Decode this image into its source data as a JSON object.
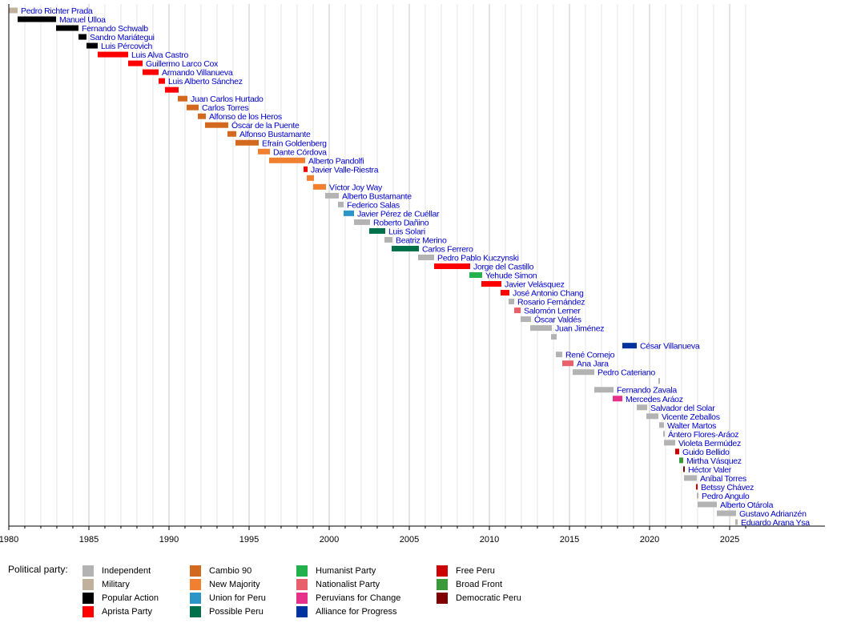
{
  "chart_data": {
    "type": "timeline",
    "xlim": [
      1980,
      2026
    ],
    "x_ticks": [
      1980,
      1985,
      1990,
      1995,
      2000,
      2005,
      2010,
      2015,
      2020,
      2025
    ],
    "grid": "vertical minor gridlines every year",
    "parties": {
      "independent": {
        "label": "Independent",
        "color": "#b3b3b3"
      },
      "military": {
        "label": "Military",
        "color": "#c0b09c"
      },
      "popular_action": {
        "label": "Popular Action",
        "color": "#000000"
      },
      "aprista": {
        "label": "Aprista Party",
        "color": "#ff0000"
      },
      "cambio90": {
        "label": "Cambio 90",
        "color": "#d2691e"
      },
      "new_majority": {
        "label": "New Majority",
        "color": "#f08030"
      },
      "union_peru": {
        "label": "Union for Peru",
        "color": "#2b95c8"
      },
      "possible_peru": {
        "label": "Possible Peru",
        "color": "#00704a"
      },
      "humanist": {
        "label": "Humanist Party",
        "color": "#22b14c"
      },
      "nationalist": {
        "label": "Nationalist Party",
        "color": "#e8606a"
      },
      "peruvians_change": {
        "label": "Peruvians for Change",
        "color": "#e6308a"
      },
      "alliance_progress": {
        "label": "Alliance for Progress",
        "color": "#0033a0"
      },
      "free_peru": {
        "label": "Free Peru",
        "color": "#cc0000"
      },
      "broad_front": {
        "label": "Broad Front",
        "color": "#3a9a3a"
      },
      "democratic_peru": {
        "label": "Democratic Peru",
        "color": "#800000"
      }
    },
    "rows": [
      {
        "name": "Pedro Richter Prada",
        "start": 1980.0,
        "end": 1980.55,
        "party": "military"
      },
      {
        "name": "Manuel Ulloa",
        "start": 1980.55,
        "end": 1982.95,
        "party": "popular_action"
      },
      {
        "name": "Fernando Schwalb",
        "start": 1982.95,
        "end": 1984.35,
        "party": "popular_action"
      },
      {
        "name": "Sandro Mariátegui",
        "start": 1984.35,
        "end": 1984.85,
        "party": "popular_action"
      },
      {
        "name": "Luis Pércovich",
        "start": 1984.85,
        "end": 1985.55,
        "party": "popular_action"
      },
      {
        "name": "Luis Alva Castro",
        "start": 1985.55,
        "end": 1987.45,
        "party": "aprista"
      },
      {
        "name": "Guillermo Larco Cox",
        "start": 1987.45,
        "end": 1988.35,
        "party": "aprista"
      },
      {
        "name": "Armando Villanueva",
        "start": 1988.35,
        "end": 1989.35,
        "party": "aprista"
      },
      {
        "name": "Luis Alberto Sánchez",
        "start": 1989.35,
        "end": 1989.75,
        "party": "aprista"
      },
      {
        "name": "Guillermo Larco Cox",
        "start": 1989.75,
        "end": 1990.6,
        "party": "aprista",
        "label": false
      },
      {
        "name": "Juan Carlos Hurtado",
        "start": 1990.55,
        "end": 1991.15,
        "party": "cambio90"
      },
      {
        "name": "Carlos Torres",
        "start": 1991.1,
        "end": 1991.85,
        "party": "cambio90"
      },
      {
        "name": "Alfonso de los Heros",
        "start": 1991.8,
        "end": 1992.3,
        "party": "cambio90"
      },
      {
        "name": "Óscar de la Puente",
        "start": 1992.25,
        "end": 1993.7,
        "party": "cambio90"
      },
      {
        "name": "Alfonso Bustamante",
        "start": 1993.65,
        "end": 1994.2,
        "party": "cambio90"
      },
      {
        "name": "Efraín Goldenberg",
        "start": 1994.15,
        "end": 1995.6,
        "party": "cambio90"
      },
      {
        "name": "Dante Córdova",
        "start": 1995.55,
        "end": 1996.3,
        "party": "new_majority"
      },
      {
        "name": "Alberto Pandolfi",
        "start": 1996.25,
        "end": 1998.5,
        "party": "new_majority"
      },
      {
        "name": "Javier Valle-Riestra",
        "start": 1998.4,
        "end": 1998.65,
        "party": "aprista"
      },
      {
        "name": "Alberto Pandolfi",
        "start": 1998.6,
        "end": 1999.05,
        "party": "new_majority",
        "label": false
      },
      {
        "name": "Víctor Joy Way",
        "start": 1999.0,
        "end": 1999.8,
        "party": "new_majority"
      },
      {
        "name": "Alberto Bustamante",
        "start": 1999.75,
        "end": 2000.6,
        "party": "independent"
      },
      {
        "name": "Federico Salas",
        "start": 2000.55,
        "end": 2000.9,
        "party": "independent"
      },
      {
        "name": "Javier Pérez de Cuéllar",
        "start": 2000.9,
        "end": 2001.55,
        "party": "union_peru"
      },
      {
        "name": "Roberto Dañino",
        "start": 2001.55,
        "end": 2002.55,
        "party": "independent"
      },
      {
        "name": "Luis Solari",
        "start": 2002.5,
        "end": 2003.5,
        "party": "possible_peru"
      },
      {
        "name": "Beatriz Merino",
        "start": 2003.45,
        "end": 2003.95,
        "party": "independent"
      },
      {
        "name": "Carlos Ferrero",
        "start": 2003.9,
        "end": 2005.6,
        "party": "possible_peru"
      },
      {
        "name": "Pedro Pablo Kuczynski",
        "start": 2005.55,
        "end": 2006.55,
        "party": "independent"
      },
      {
        "name": "Jorge del Castillo",
        "start": 2006.55,
        "end": 2008.8,
        "party": "aprista"
      },
      {
        "name": "Yehude Simon",
        "start": 2008.75,
        "end": 2009.55,
        "party": "humanist"
      },
      {
        "name": "Javier Velásquez",
        "start": 2009.5,
        "end": 2010.75,
        "party": "aprista"
      },
      {
        "name": "José Antonio Chang",
        "start": 2010.7,
        "end": 2011.25,
        "party": "aprista"
      },
      {
        "name": "Rosario Fernández",
        "start": 2011.2,
        "end": 2011.55,
        "party": "independent"
      },
      {
        "name": "Salomón Lerner",
        "start": 2011.55,
        "end": 2011.95,
        "party": "nationalist"
      },
      {
        "name": "Óscar Valdés",
        "start": 2011.95,
        "end": 2012.6,
        "party": "independent"
      },
      {
        "name": "Juan Jiménez",
        "start": 2012.55,
        "end": 2013.9,
        "party": "independent"
      },
      {
        "name": "",
        "start": 2013.85,
        "end": 2014.2,
        "party": "independent",
        "label": false
      },
      {
        "name": "César Villanueva",
        "start": 2018.3,
        "end": 2019.2,
        "party": "alliance_progress"
      },
      {
        "name": "René Cornejo",
        "start": 2014.15,
        "end": 2014.55,
        "party": "independent"
      },
      {
        "name": "Ana Jara",
        "start": 2014.55,
        "end": 2015.25,
        "party": "nationalist"
      },
      {
        "name": "Pedro Cateriano",
        "start": 2015.2,
        "end": 2016.55,
        "party": "independent"
      },
      {
        "name": "Pedro Cateriano",
        "start": 2020.55,
        "end": 2020.65,
        "party": "independent",
        "label": false
      },
      {
        "name": "Fernando Zavala",
        "start": 2016.55,
        "end": 2017.75,
        "party": "independent"
      },
      {
        "name": "Mercedes Aráoz",
        "start": 2017.7,
        "end": 2018.3,
        "party": "peruvians_change"
      },
      {
        "name": "Salvador del Solar",
        "start": 2019.2,
        "end": 2019.85,
        "party": "independent"
      },
      {
        "name": "Vicente Zeballos",
        "start": 2019.8,
        "end": 2020.55,
        "party": "independent"
      },
      {
        "name": "Walter Martos",
        "start": 2020.6,
        "end": 2020.9,
        "party": "independent"
      },
      {
        "name": "Ántero Flores-Aráoz",
        "start": 2020.85,
        "end": 2020.95,
        "party": "independent"
      },
      {
        "name": "Violeta Bermúdez",
        "start": 2020.9,
        "end": 2021.6,
        "party": "independent"
      },
      {
        "name": "Guido Bellido",
        "start": 2021.6,
        "end": 2021.85,
        "party": "free_peru"
      },
      {
        "name": "Mirtha Vásquez",
        "start": 2021.85,
        "end": 2022.1,
        "party": "broad_front"
      },
      {
        "name": "Héctor Valer",
        "start": 2022.1,
        "end": 2022.2,
        "party": "democratic_peru"
      },
      {
        "name": "Aníbal Torres",
        "start": 2022.15,
        "end": 2022.95,
        "party": "independent"
      },
      {
        "name": "Betssy Chávez",
        "start": 2022.9,
        "end": 2023.0,
        "party": "free_peru"
      },
      {
        "name": "Pedro Angulo",
        "start": 2022.95,
        "end": 2023.05,
        "party": "independent"
      },
      {
        "name": "Alberto Otárola",
        "start": 2023.0,
        "end": 2024.2,
        "party": "independent"
      },
      {
        "name": "Gustavo Adrianzén",
        "start": 2024.2,
        "end": 2025.4,
        "party": "independent"
      },
      {
        "name": "Eduardo Arana Ysa",
        "start": 2025.35,
        "end": 2025.5,
        "party": "independent"
      }
    ]
  },
  "legend": {
    "title": "Political party:",
    "columns": [
      [
        "independent",
        "military",
        "popular_action",
        "aprista"
      ],
      [
        "cambio90",
        "new_majority",
        "union_peru",
        "possible_peru"
      ],
      [
        "humanist",
        "nationalist",
        "peruvians_change",
        "alliance_progress"
      ],
      [
        "free_peru",
        "broad_front",
        "democratic_peru"
      ]
    ]
  }
}
